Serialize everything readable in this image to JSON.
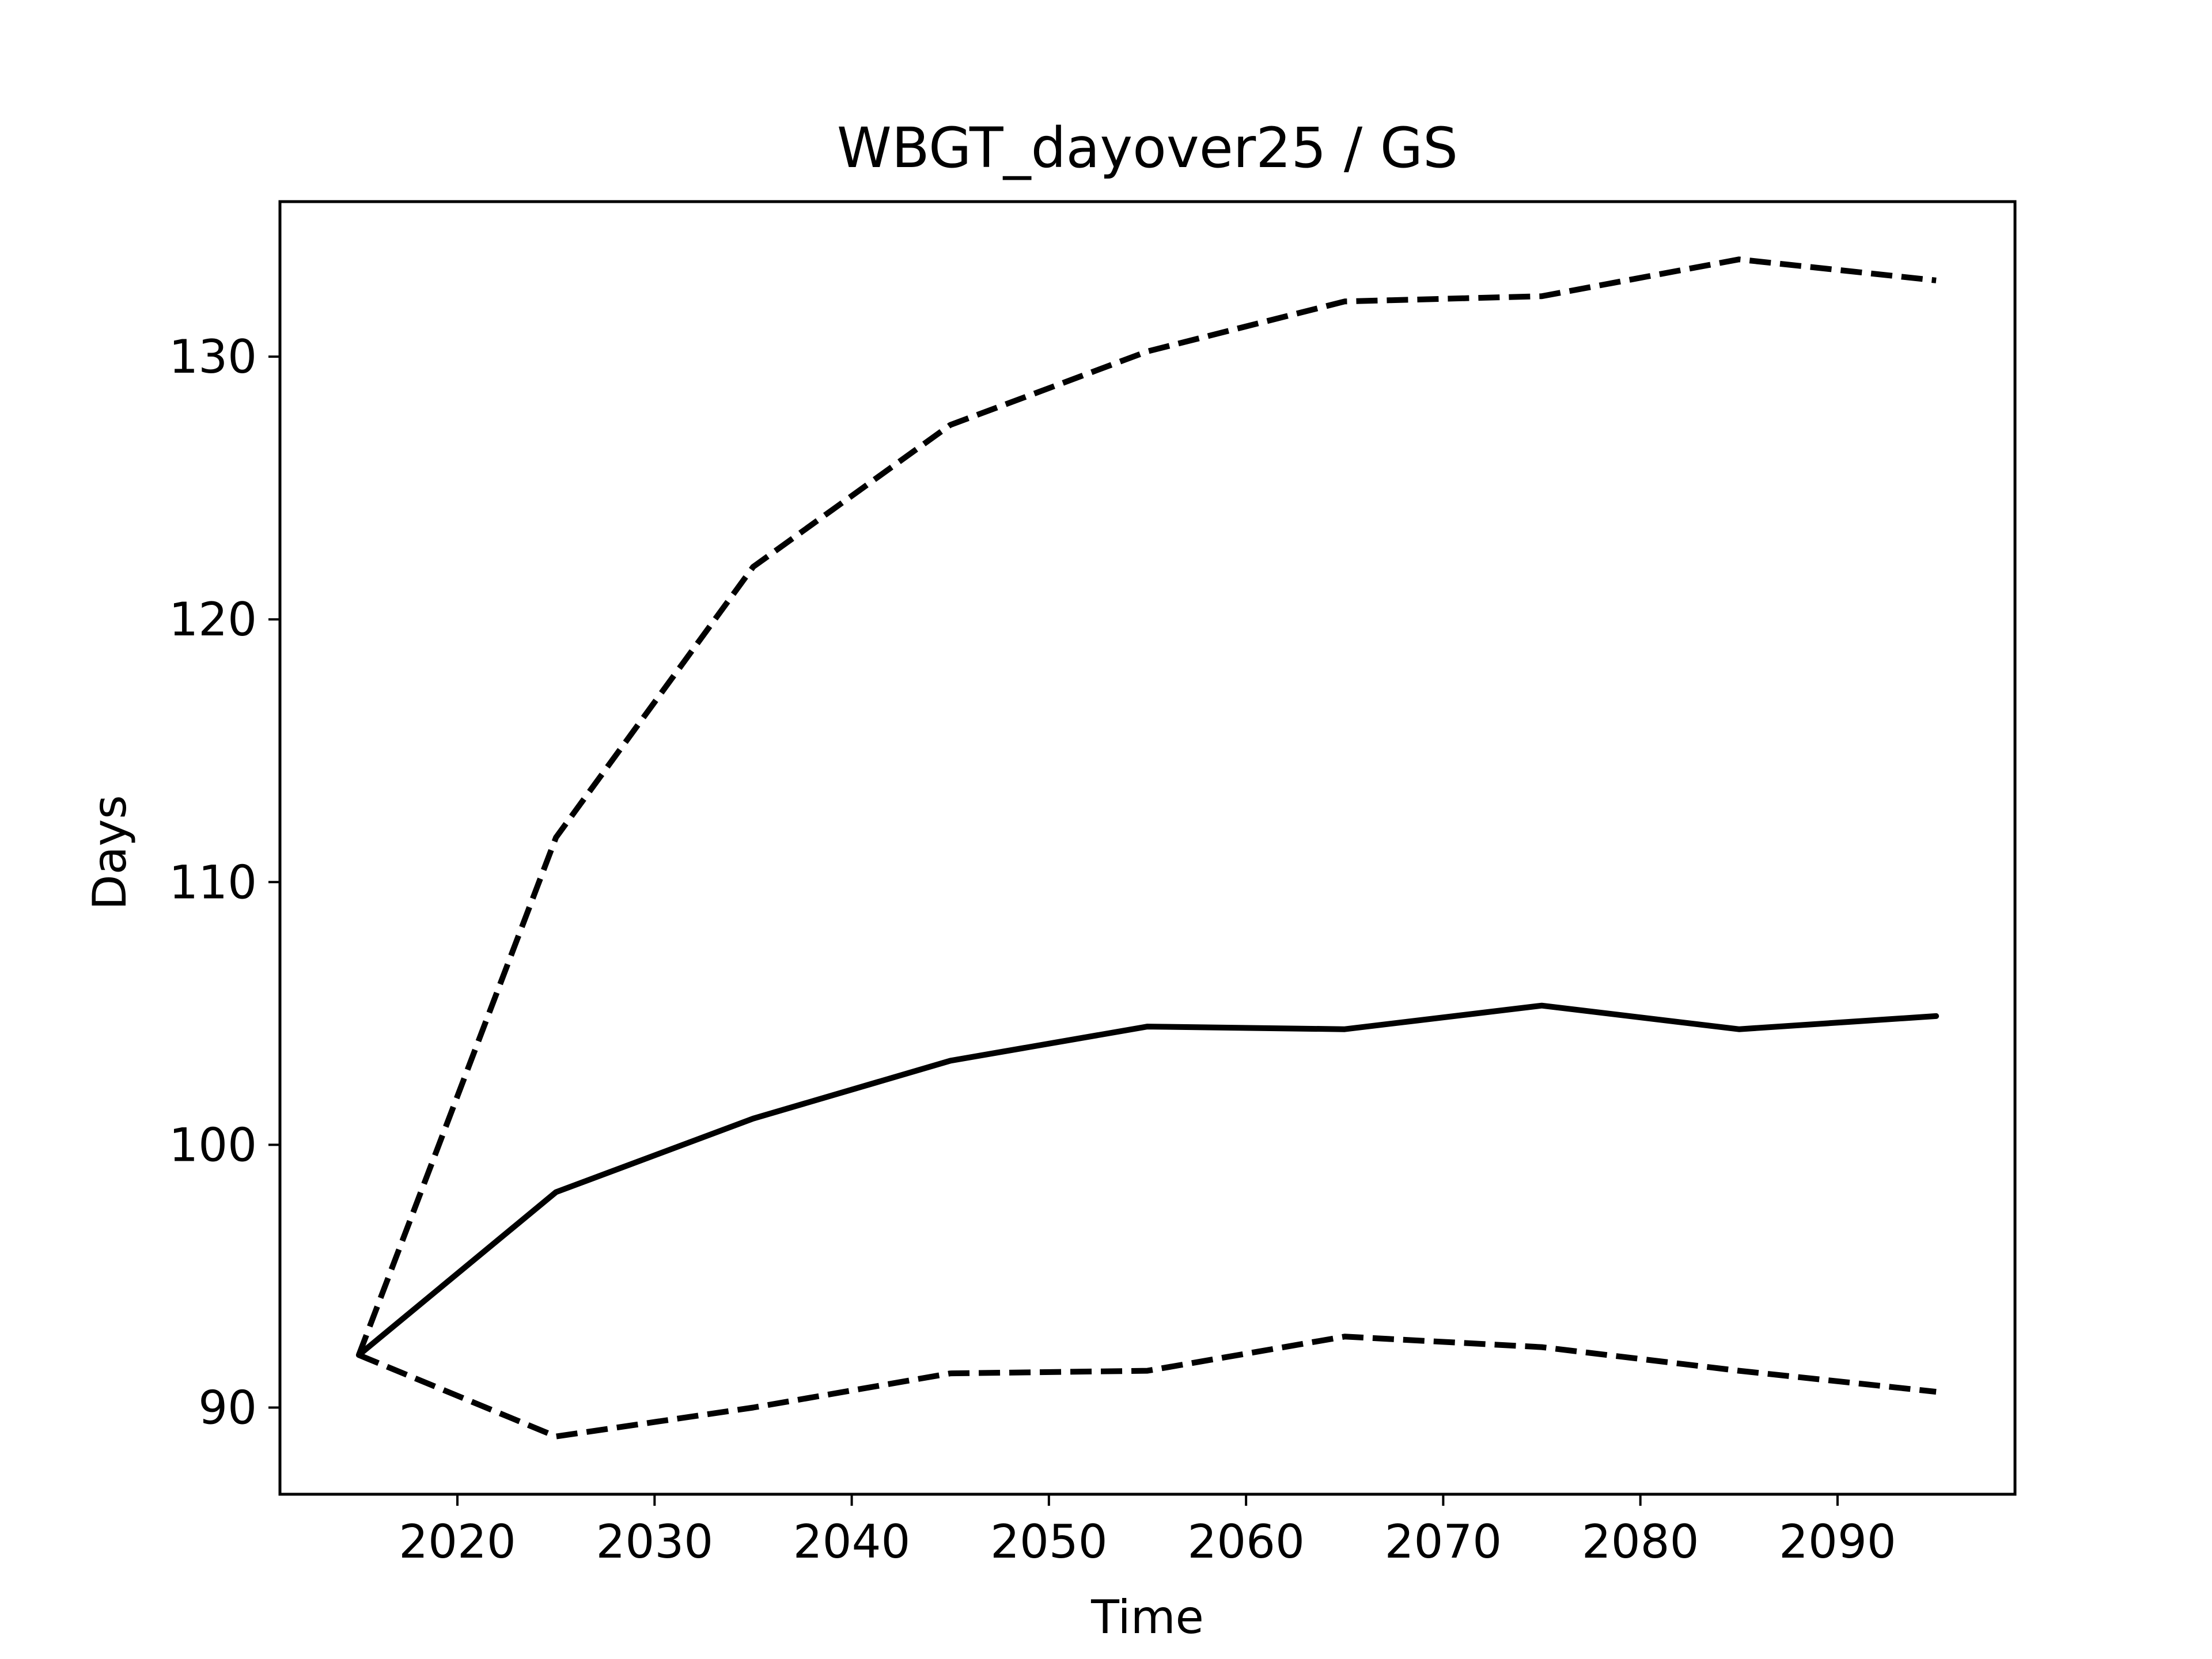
{
  "chart_data": {
    "type": "line",
    "title": "WBGT_dayover25 / GS",
    "xlabel": "Time",
    "ylabel": "Days",
    "x": [
      2015,
      2025,
      2035,
      2045,
      2055,
      2065,
      2075,
      2085,
      2095
    ],
    "series": [
      {
        "style": "dashed",
        "color": "#000000",
        "values": [
          92.0,
          111.7,
          122.0,
          127.4,
          130.2,
          132.1,
          132.3,
          133.7,
          132.9
        ]
      },
      {
        "style": "solid",
        "color": "#000000",
        "values": [
          92.0,
          98.2,
          101.0,
          103.2,
          104.5,
          104.4,
          105.3,
          104.4,
          104.9
        ]
      },
      {
        "style": "dashed",
        "color": "#000000",
        "values": [
          92.0,
          88.9,
          90.0,
          91.3,
          91.4,
          92.7,
          92.3,
          91.4,
          90.6
        ]
      }
    ],
    "xlim": [
      2011,
      2099
    ],
    "ylim": [
      86.7,
      135.9
    ],
    "xticks": [
      2020,
      2030,
      2040,
      2050,
      2060,
      2070,
      2080,
      2090
    ],
    "yticks": [
      90,
      100,
      110,
      120,
      130
    ],
    "grid": false,
    "legend": "none"
  }
}
